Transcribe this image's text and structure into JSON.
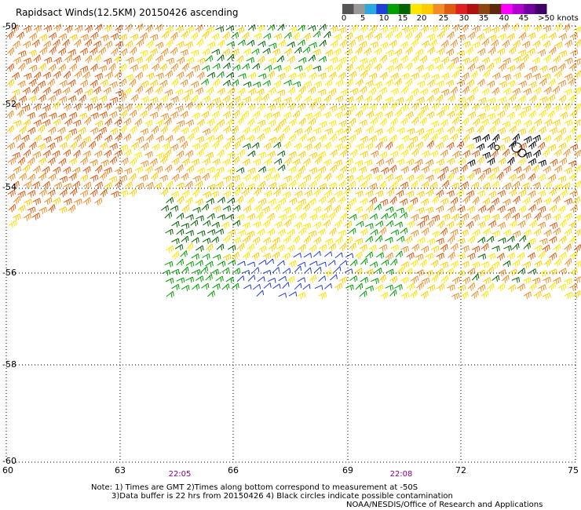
{
  "title": "Rapidsact Winds(12.5KM) 20150426 ascending",
  "colorbar": {
    "colors": [
      "#555555",
      "#999999",
      "#2aa8e0",
      "#1f3fd8",
      "#00a000",
      "#006400",
      "#ffe600",
      "#ffcc00",
      "#f28c28",
      "#e05a10",
      "#e02020",
      "#b01010",
      "#8b4513",
      "#5c2a0a",
      "#ff00ff",
      "#b000d0",
      "#7000a0",
      "#40006a"
    ],
    "labels": [
      "0",
      "5",
      "10",
      "15",
      "20",
      "25",
      "30",
      "35",
      "40",
      "45",
      ">50 knots"
    ]
  },
  "axes": {
    "lat_labels": [
      "-50",
      "-52",
      "-54",
      "-56",
      "-58",
      "-60"
    ],
    "lon_labels": [
      "60",
      "63",
      "66",
      "69",
      "72",
      "75"
    ]
  },
  "times": [
    "22:05",
    "22:08"
  ],
  "notes": {
    "line1": "Note: 1) Times are GMT 2)Times along bottom correspond to measurement at -50S",
    "line2": "3)Data buffer is 22 hrs from 20150426 4) Black circles indicate possible contamination",
    "line3": "NOAA/NESDIS/Office of Research and Applications"
  },
  "barb_colors": {
    "low": "#1f3fd8",
    "green": "#00a000",
    "darkgreen": "#006400",
    "yellow": "#ffe600",
    "gold": "#ffcc00",
    "orange": "#f28c28",
    "darkorange": "#e05a10",
    "red": "#e02020",
    "black": "#000000"
  }
}
